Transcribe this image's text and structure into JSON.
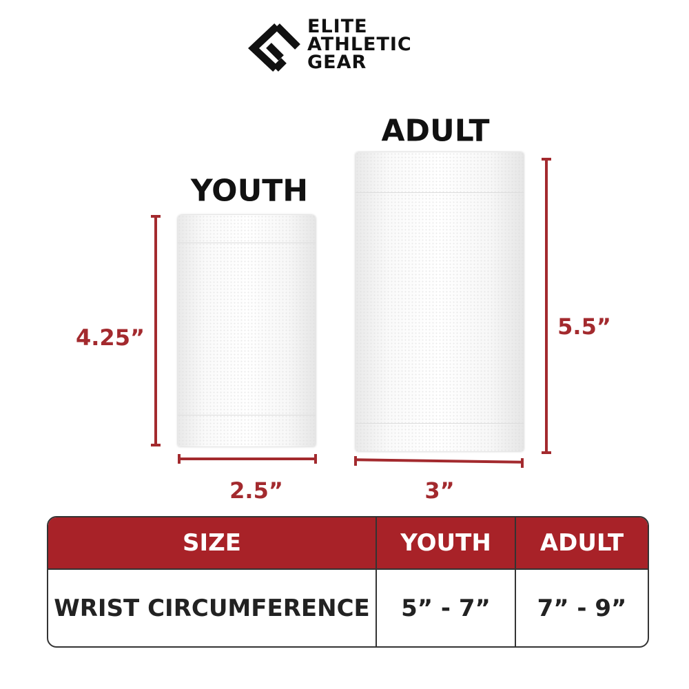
{
  "brand": {
    "name_lines": [
      "ELITE",
      "ATHLETIC",
      "GEAR"
    ]
  },
  "colors": {
    "accent": "#a82228",
    "dimension": "#a32a2e",
    "text": "#111111"
  },
  "products": [
    {
      "title": "YOUTH",
      "height": "4.25”",
      "width": "2.5”"
    },
    {
      "title": "ADULT",
      "height": "5.5”",
      "width": "3”"
    }
  ],
  "table": {
    "headers": [
      "SIZE",
      "YOUTH",
      "ADULT"
    ],
    "rows": [
      [
        "WRIST CIRCUMFERENCE",
        "5” - 7”",
        "7” - 9”"
      ]
    ]
  }
}
